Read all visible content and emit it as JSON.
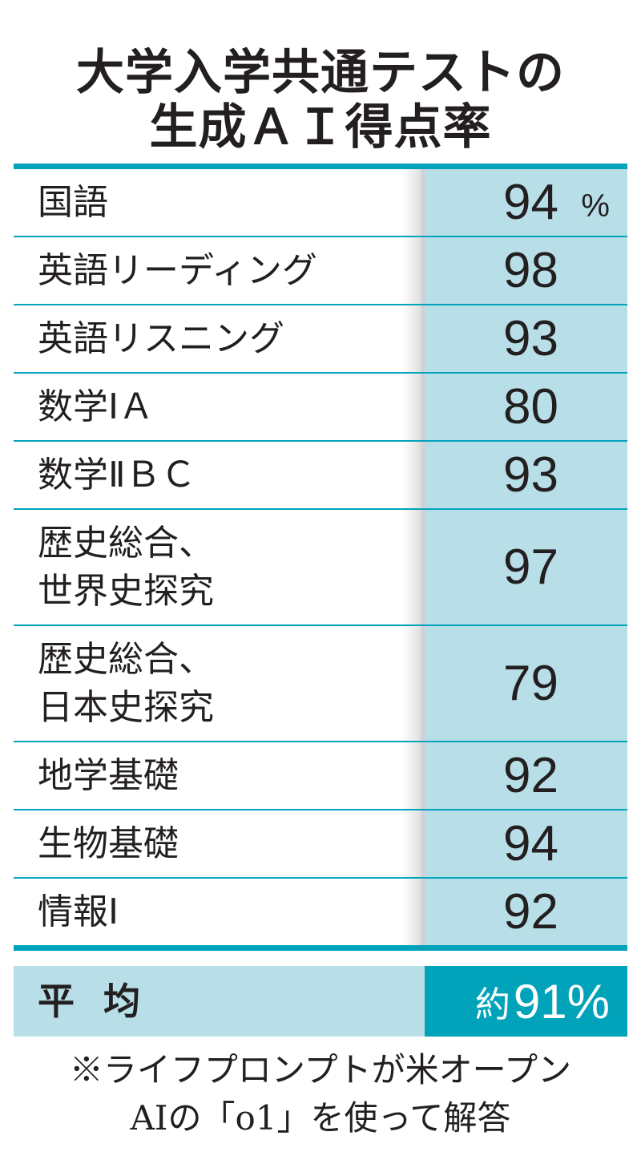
{
  "chart_data": {
    "type": "table",
    "title_lines": [
      "大学入学共通テストの",
      "生成ＡＩ得点率"
    ],
    "unit": "%",
    "rows": [
      {
        "subject": [
          "国語"
        ],
        "value": 94
      },
      {
        "subject": [
          "英語リーディング"
        ],
        "value": 98
      },
      {
        "subject": [
          "英語リスニング"
        ],
        "value": 93
      },
      {
        "subject": [
          "数学ⅠＡ"
        ],
        "value": 80
      },
      {
        "subject": [
          "数学ⅡＢＣ"
        ],
        "value": 93
      },
      {
        "subject": [
          "歴史総合、",
          "世界史探究"
        ],
        "value": 97
      },
      {
        "subject": [
          "歴史総合、",
          "日本史探究"
        ],
        "value": 79
      },
      {
        "subject": [
          "地学基礎"
        ],
        "value": 92
      },
      {
        "subject": [
          "生物基礎"
        ],
        "value": 94
      },
      {
        "subject": [
          "情報Ⅰ"
        ],
        "value": 92
      }
    ],
    "average": {
      "label": "平均",
      "prefix": "約",
      "value": 91,
      "unit": "%"
    },
    "note_lines": [
      "※ライフプロンプトが米オープン",
      "AIの「o1」を使って解答"
    ]
  },
  "colors": {
    "accent": "#00a3ba",
    "value_bg": "#b8dee8",
    "text": "#231f20"
  }
}
